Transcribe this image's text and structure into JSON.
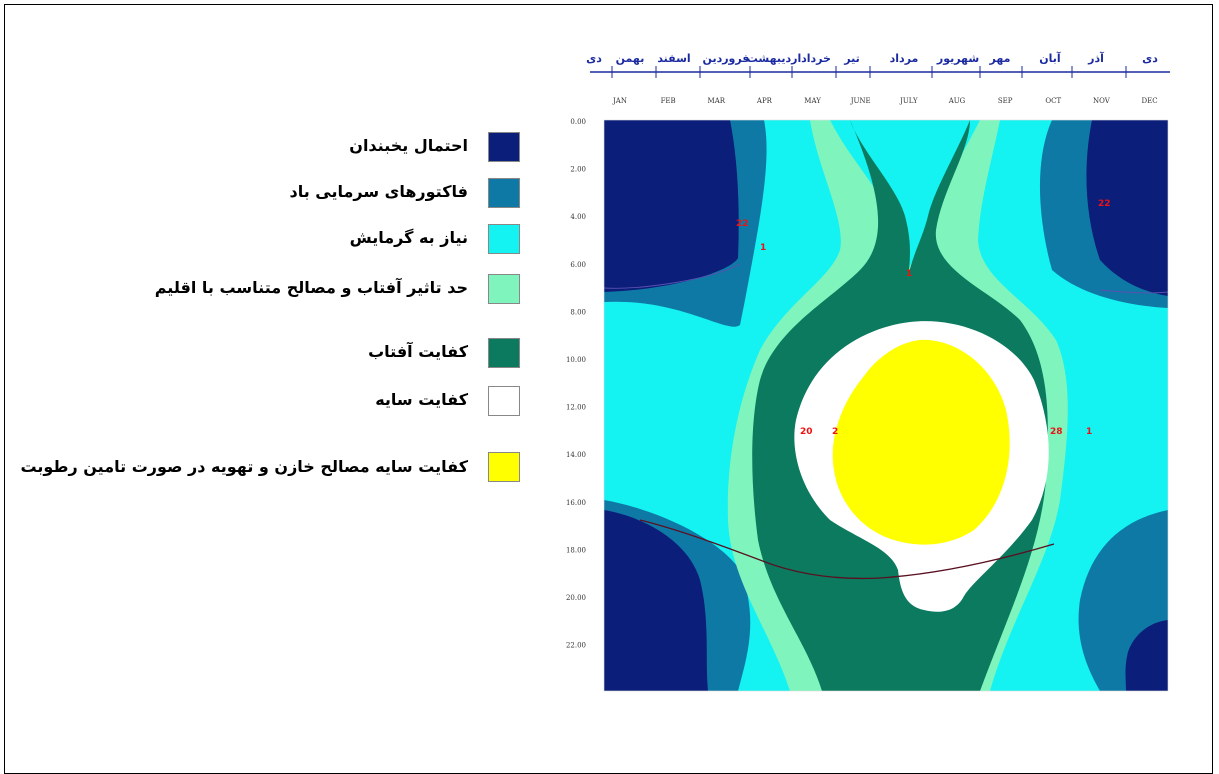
{
  "legend": {
    "items": [
      {
        "label": "احتمال یخبندان",
        "color": "#0b1e7a"
      },
      {
        "label": "فاکتورهای سرمایی باد",
        "color": "#0f79a6"
      },
      {
        "label": "نیاز به گرمایش",
        "color": "#14f2f2"
      },
      {
        "label": "حد تاثیر آفتاب و مصالح متناسب با اقلیم",
        "color": "#7ff5bd"
      },
      {
        "label": "کفایت آفتاب",
        "color": "#0b7a5f"
      },
      {
        "label": "کفایت سایه",
        "color": "#ffffff"
      },
      {
        "label": "کفایت سایه مصالح خازن و تهویه در صورت تامین رطوبت",
        "color": "#ffff00"
      }
    ]
  },
  "chart_data": {
    "type": "heatmap",
    "x_months_persian": [
      "دی",
      "بهمن",
      "اسفند",
      "فروردین",
      "اردیبهشت",
      "خرداد",
      "تیر",
      "مرداد",
      "شهریور",
      "مهر",
      "آبان",
      "آذر",
      "دی"
    ],
    "x_months_english": [
      "JAN",
      "FEB",
      "MAR",
      "APR",
      "MAY",
      "JUNE",
      "JULY",
      "AUG",
      "SEP",
      "OCT",
      "NOV",
      "DEC"
    ],
    "y_hours": [
      "0.00",
      "2.00",
      "4.00",
      "6.00",
      "8.00",
      "10.00",
      "12.00",
      "14.00",
      "16.00",
      "18.00",
      "20.00",
      "22.00"
    ],
    "markers": [
      "22",
      "1",
      "1",
      "20",
      "2",
      "28",
      "1",
      "22"
    ],
    "zones": [
      "احتمال یخبندان",
      "فاکتورهای سرمایی باد",
      "نیاز به گرمایش",
      "حد تاثیر آفتاب و مصالح متناسب با اقلیم",
      "کفایت آفتاب",
      "کفایت سایه",
      "کفایت سایه مصالح خازن و تهویه در صورت تامین رطوبت"
    ]
  },
  "colors": {
    "frost": "#0b1e7a",
    "wind": "#0f79a6",
    "heating": "#14f2f2",
    "sun_limit": "#7ff5bd",
    "sun": "#0b7a5f",
    "shade": "#ffffff",
    "shade_ext": "#ffff00",
    "month_text": "#1b2aa0",
    "marker": "#ee1111"
  }
}
